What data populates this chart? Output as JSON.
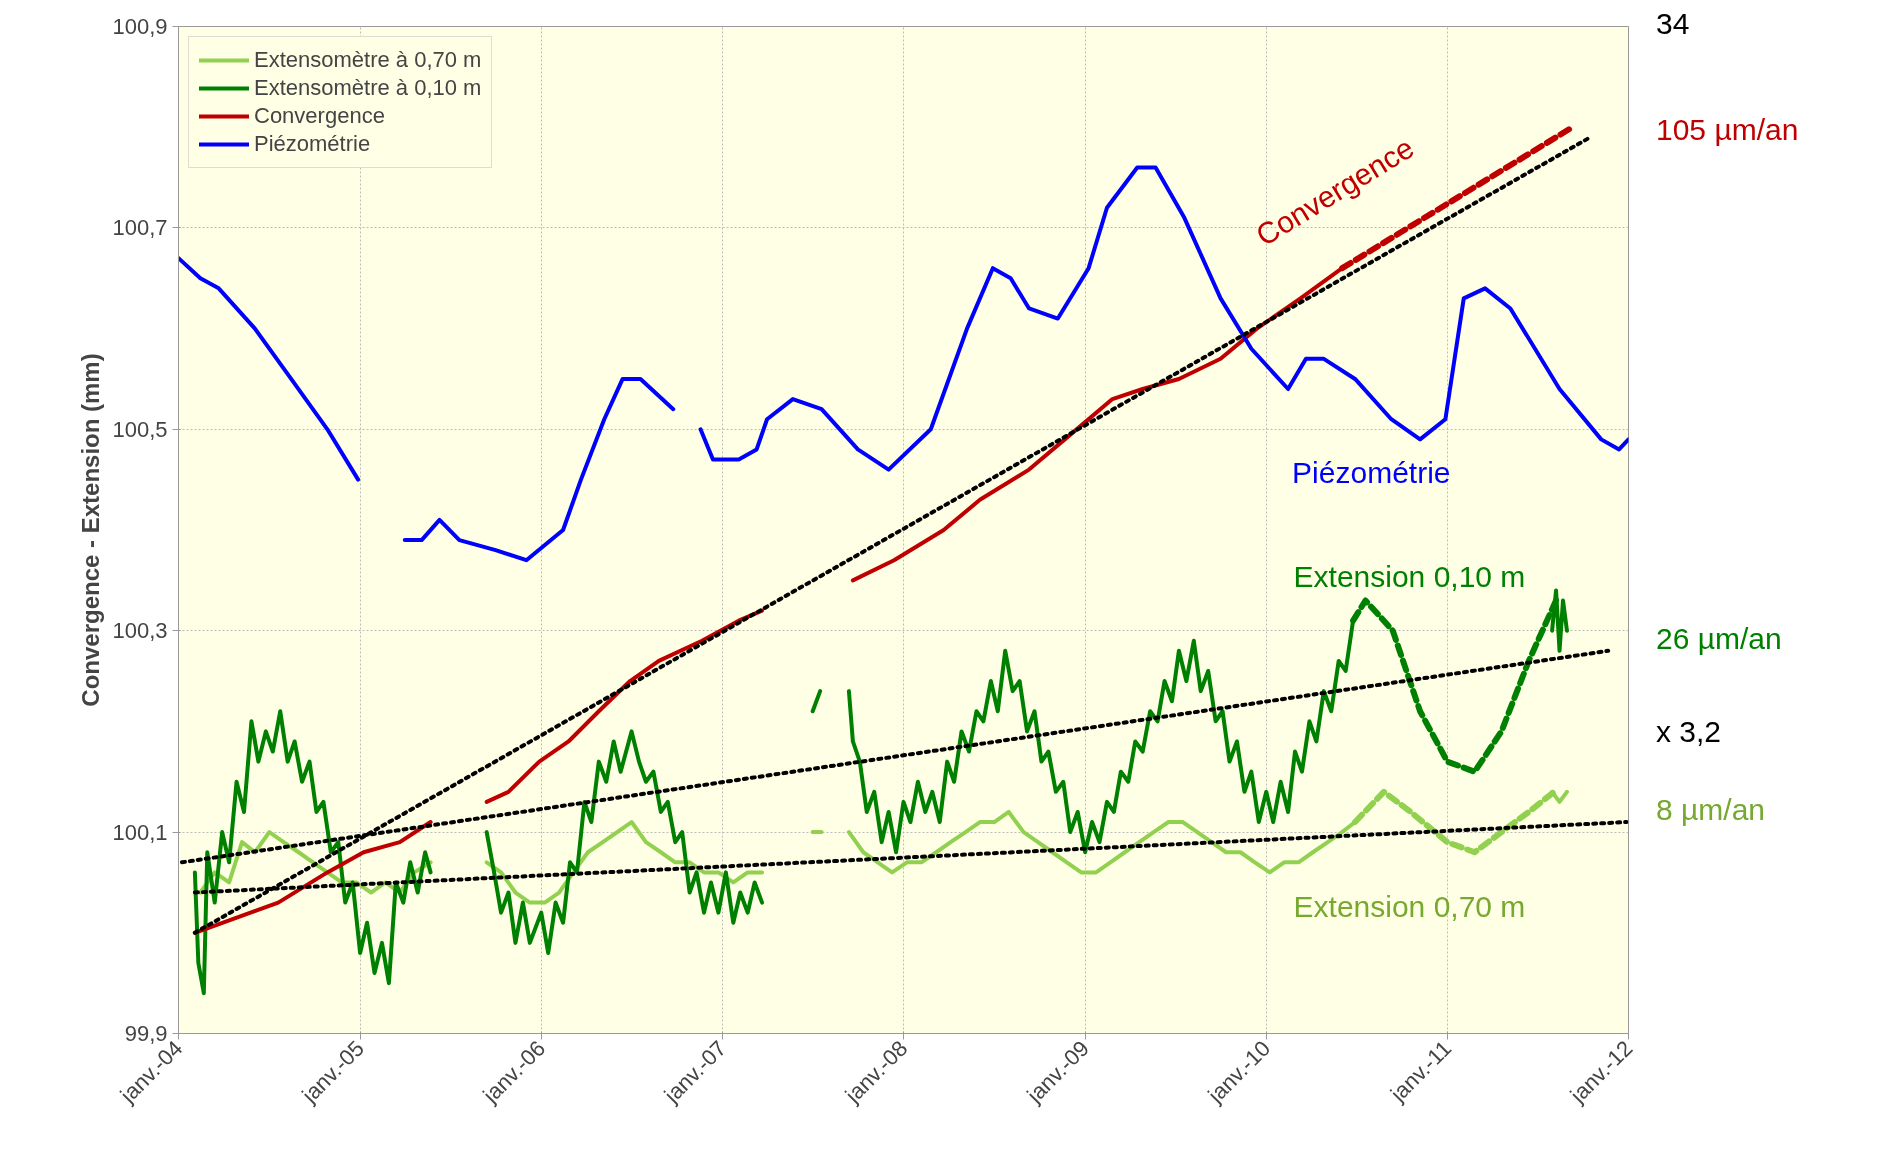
{
  "chart_data": {
    "type": "line",
    "ylabel": "Convergence - Extension (mm)",
    "xlim": [
      "2004-01-01",
      "2012-01-01"
    ],
    "ylim": [
      99.9,
      100.9
    ],
    "xticks": [
      {
        "value": "2004-01-01",
        "label": "janv.-04"
      },
      {
        "value": "2005-01-01",
        "label": "janv.-05"
      },
      {
        "value": "2006-01-01",
        "label": "janv.-06"
      },
      {
        "value": "2007-01-01",
        "label": "janv.-07"
      },
      {
        "value": "2008-01-01",
        "label": "janv.-08"
      },
      {
        "value": "2009-01-01",
        "label": "janv.-09"
      },
      {
        "value": "2010-01-01",
        "label": "janv.-10"
      },
      {
        "value": "2011-01-01",
        "label": "janv.-11"
      },
      {
        "value": "2012-01-01",
        "label": "janv.-12"
      }
    ],
    "yticks": [
      {
        "value": 99.9,
        "label": "99,9"
      },
      {
        "value": 100.1,
        "label": "100,1"
      },
      {
        "value": 100.3,
        "label": "100,3"
      },
      {
        "value": 100.5,
        "label": "100,5"
      },
      {
        "value": 100.7,
        "label": "100,7"
      },
      {
        "value": 100.9,
        "label": "100,9"
      }
    ],
    "grid": true,
    "legend": "top left",
    "series": [
      {
        "name": "Extensomètre à 0,70 m",
        "color": "#92d050",
        "line_style": "solid",
        "x": [
          "2004-02-14",
          "2004-03-14",
          "2004-04-12",
          "2004-05-08",
          "2004-06-03",
          "2004-07-02",
          "2004-07-31",
          "2004-08-30",
          "2004-09-28",
          "2004-10-27",
          "2004-11-25",
          "2004-12-24",
          "2005-01-23",
          "2005-02-21",
          "2005-03-22",
          "2005-04-20",
          "2005-05-23",
          "2005-07-02",
          "2005-09-13",
          "2005-10-12",
          "2005-11-10",
          "2005-12-09",
          "2006-01-08",
          "2006-02-06",
          "2006-03-07",
          "2006-04-05",
          "2006-05-05",
          "2006-06-03",
          "2006-07-02",
          "2006-07-31",
          "2006-08-30",
          "2006-09-28",
          "2006-10-27",
          "2006-11-25",
          "2006-12-24",
          "2007-01-23",
          "2007-02-21",
          "2007-03-22",
          "2007-05-27",
          "2007-07-02",
          "2007-07-20",
          "2007-08-15",
          "2007-09-13",
          "2007-10-12",
          "2007-11-10",
          "2007-12-09",
          "2008-01-08",
          "2008-02-06",
          "2008-03-07",
          "2008-04-05",
          "2008-05-05",
          "2008-06-03",
          "2008-07-02",
          "2008-07-31",
          "2008-08-30",
          "2008-09-28",
          "2008-10-27",
          "2008-11-25",
          "2008-12-24",
          "2009-01-23",
          "2009-02-21",
          "2009-03-22",
          "2009-04-20",
          "2009-05-19",
          "2009-06-18",
          "2009-07-17",
          "2009-08-15",
          "2009-09-13",
          "2009-10-12",
          "2009-11-10",
          "2009-12-09",
          "2010-01-08",
          "2010-02-06",
          "2010-03-07",
          "2010-04-05",
          "2010-05-05",
          "2010-06-03",
          "2010-06-29",
          "2011-01-01",
          "2011-07-31",
          "2011-08-15",
          "2011-08-30"
        ],
        "values": [
          100.04,
          100.06,
          100.05,
          100.09,
          100.08,
          100.1,
          100.09,
          100.08,
          100.07,
          100.06,
          100.05,
          100.05,
          100.04,
          100.05,
          100.04,
          100.06,
          100.07,
          null,
          100.07,
          100.06,
          100.04,
          100.03,
          100.03,
          100.04,
          100.06,
          100.08,
          100.09,
          100.1,
          100.11,
          100.09,
          100.08,
          100.07,
          100.07,
          100.06,
          100.06,
          100.05,
          100.06,
          100.06,
          null,
          100.1,
          100.1,
          null,
          100.1,
          100.08,
          100.07,
          100.06,
          100.07,
          100.07,
          100.08,
          100.09,
          100.1,
          100.11,
          100.11,
          100.12,
          100.1,
          100.09,
          100.08,
          100.07,
          100.06,
          100.06,
          100.07,
          100.08,
          100.09,
          100.1,
          100.11,
          100.11,
          100.1,
          100.09,
          100.08,
          100.08,
          100.07,
          100.06,
          100.07,
          100.07,
          100.08,
          100.09,
          100.1,
          100.11,
          null,
          100.14,
          100.13,
          100.14
        ]
      },
      {
        "name": "Extensomètre à 0,10 m",
        "color": "#008000",
        "line_style": "solid",
        "x": [
          "2004-02-03",
          "2004-02-10",
          "2004-02-21",
          "2004-02-28",
          "2004-03-14",
          "2004-03-29",
          "2004-04-12",
          "2004-04-27",
          "2004-05-12",
          "2004-05-27",
          "2004-06-10",
          "2004-06-25",
          "2004-07-09",
          "2004-07-24",
          "2004-08-08",
          "2004-08-22",
          "2004-09-06",
          "2004-09-21",
          "2004-10-05",
          "2004-10-19",
          "2004-11-03",
          "2004-11-18",
          "2004-12-02",
          "2004-12-17",
          "2005-01-01",
          "2005-01-15",
          "2005-01-30",
          "2005-02-14",
          "2005-02-28",
          "2005-03-14",
          "2005-03-29",
          "2005-04-12",
          "2005-04-27",
          "2005-05-12",
          "2005-05-23",
          "2005-07-02",
          "2005-09-13",
          "2005-09-28",
          "2005-10-12",
          "2005-10-27",
          "2005-11-10",
          "2005-11-25",
          "2005-12-09",
          "2006-01-01",
          "2006-01-15",
          "2006-01-30",
          "2006-02-14",
          "2006-02-28",
          "2006-03-14",
          "2006-03-29",
          "2006-04-12",
          "2006-04-27",
          "2006-05-12",
          "2006-05-27",
          "2006-06-10",
          "2006-07-02",
          "2006-07-17",
          "2006-07-31",
          "2006-08-15",
          "2006-08-30",
          "2006-09-13",
          "2006-09-28",
          "2006-10-12",
          "2006-10-27",
          "2006-11-10",
          "2006-11-25",
          "2006-12-09",
          "2006-12-24",
          "2007-01-08",
          "2007-01-23",
          "2007-02-06",
          "2007-02-21",
          "2007-03-07",
          "2007-03-22",
          "2007-05-27",
          "2007-07-02",
          "2007-07-17",
          "2007-08-15",
          "2007-09-13",
          "2007-09-21",
          "2007-10-05",
          "2007-10-19",
          "2007-11-03",
          "2007-11-18",
          "2007-12-02",
          "2007-12-17",
          "2008-01-01",
          "2008-01-15",
          "2008-01-30",
          "2008-02-14",
          "2008-02-28",
          "2008-03-14",
          "2008-03-29",
          "2008-04-12",
          "2008-04-27",
          "2008-05-12",
          "2008-05-27",
          "2008-06-10",
          "2008-06-25",
          "2008-07-09",
          "2008-07-24",
          "2008-08-08",
          "2008-08-22",
          "2008-09-06",
          "2008-09-21",
          "2008-10-05",
          "2008-10-19",
          "2008-11-03",
          "2008-11-18",
          "2008-12-02",
          "2008-12-17",
          "2009-01-01",
          "2009-01-15",
          "2009-01-30",
          "2009-02-14",
          "2009-02-28",
          "2009-03-14",
          "2009-03-29",
          "2009-04-12",
          "2009-04-27",
          "2009-05-12",
          "2009-05-27",
          "2009-06-10",
          "2009-06-25",
          "2009-07-09",
          "2009-07-24",
          "2009-08-08",
          "2009-08-22",
          "2009-09-06",
          "2009-09-21",
          "2009-10-05",
          "2009-10-19",
          "2009-11-03",
          "2009-11-18",
          "2009-12-02",
          "2009-12-17",
          "2010-01-01",
          "2010-01-15",
          "2010-01-30",
          "2010-02-14",
          "2010-02-28",
          "2010-03-14",
          "2010-03-29",
          "2010-04-12",
          "2010-04-27",
          "2010-05-12",
          "2010-05-27",
          "2010-06-10",
          "2010-06-25",
          "2011-01-01",
          "2011-07-31",
          "2011-08-08",
          "2011-08-15",
          "2011-08-22",
          "2011-08-30"
        ],
        "values": [
          100.06,
          99.97,
          99.94,
          100.08,
          100.03,
          100.1,
          100.07,
          100.15,
          100.12,
          100.21,
          100.17,
          100.2,
          100.18,
          100.22,
          100.17,
          100.19,
          100.15,
          100.17,
          100.12,
          100.13,
          100.08,
          100.09,
          100.03,
          100.05,
          99.98,
          100.01,
          99.96,
          99.99,
          99.95,
          100.05,
          100.03,
          100.07,
          100.04,
          100.08,
          100.06,
          null,
          100.1,
          100.06,
          100.02,
          100.04,
          99.99,
          100.03,
          99.99,
          100.02,
          99.98,
          100.03,
          100.01,
          100.07,
          100.06,
          100.13,
          100.11,
          100.17,
          100.15,
          100.19,
          100.16,
          100.2,
          100.17,
          100.15,
          100.16,
          100.12,
          100.13,
          100.09,
          100.1,
          100.04,
          100.06,
          100.02,
          100.05,
          100.02,
          100.06,
          100.01,
          100.04,
          100.02,
          100.05,
          100.03,
          null,
          100.22,
          100.24,
          null,
          100.24,
          100.19,
          100.17,
          100.12,
          100.14,
          100.09,
          100.12,
          100.08,
          100.13,
          100.11,
          100.15,
          100.12,
          100.14,
          100.11,
          100.17,
          100.15,
          100.2,
          100.18,
          100.22,
          100.21,
          100.25,
          100.22,
          100.28,
          100.24,
          100.25,
          100.2,
          100.22,
          100.17,
          100.18,
          100.14,
          100.15,
          100.1,
          100.12,
          100.08,
          100.11,
          100.09,
          100.13,
          100.12,
          100.16,
          100.15,
          100.19,
          100.18,
          100.22,
          100.21,
          100.25,
          100.23,
          100.28,
          100.25,
          100.29,
          100.24,
          100.26,
          100.21,
          100.22,
          100.17,
          100.19,
          100.14,
          100.16,
          100.11,
          100.14,
          100.11,
          100.15,
          100.12,
          100.18,
          100.16,
          100.21,
          100.19,
          100.24,
          100.22,
          100.27,
          100.26,
          100.31,
          null,
          100.3,
          100.34,
          100.28,
          100.33,
          100.3
        ]
      },
      {
        "name": "Convergence",
        "color": "#c00000",
        "line_style": "solid",
        "x": [
          "2004-02-03",
          "2004-07-20",
          "2004-10-27",
          "2005-01-08",
          "2005-03-22",
          "2005-05-23",
          "2005-07-02",
          "2005-09-13",
          "2005-10-27",
          "2005-12-28",
          "2006-02-25",
          "2006-04-27",
          "2006-06-29",
          "2006-08-26",
          "2006-11-21",
          "2007-02-03",
          "2007-03-22",
          "2007-05-27",
          "2007-09-21",
          "2007-12-13",
          "2008-03-22",
          "2008-06-03",
          "2008-09-10",
          "2008-11-21",
          "2009-02-25",
          "2009-04-27",
          "2009-07-09",
          "2009-10-01",
          "2009-12-13",
          "2010-03-11",
          "2010-06-03"
        ],
        "values": [
          100.0,
          100.03,
          100.06,
          100.08,
          100.09,
          100.11,
          null,
          100.13,
          100.14,
          100.17,
          100.19,
          100.22,
          100.25,
          100.27,
          100.29,
          100.31,
          100.32,
          null,
          100.35,
          100.37,
          100.4,
          100.43,
          100.46,
          100.49,
          100.53,
          100.54,
          100.55,
          100.57,
          100.6,
          100.63,
          100.66
        ]
      },
      {
        "name": "Piézométrie",
        "color": "#0000ff",
        "line_style": "solid",
        "x": [
          "2004-01-01",
          "2004-02-14",
          "2004-03-22",
          "2004-06-03",
          "2004-08-15",
          "2004-10-27",
          "2004-12-28",
          "2005-02-06",
          "2005-04-01",
          "2005-05-05",
          "2005-06-10",
          "2005-07-20",
          "2005-10-01",
          "2005-12-02",
          "2006-02-14",
          "2006-03-22",
          "2006-05-08",
          "2006-06-14",
          "2006-07-20",
          "2006-09-24",
          "2006-10-19",
          "2006-11-18",
          "2006-12-13",
          "2007-02-03",
          "2007-03-11",
          "2007-04-01",
          "2007-05-23",
          "2007-07-20",
          "2007-10-01",
          "2007-12-02",
          "2008-02-25",
          "2008-05-08",
          "2008-06-29",
          "2008-08-04",
          "2008-09-10",
          "2008-11-07",
          "2009-01-08",
          "2009-02-14",
          "2009-04-16",
          "2009-05-23",
          "2009-07-20",
          "2009-10-01",
          "2009-12-02",
          "2010-02-14",
          "2010-03-22",
          "2010-04-27",
          "2010-06-29",
          "2010-09-10",
          "2010-11-07",
          "2010-12-28",
          "2011-02-03",
          "2011-03-18",
          "2011-05-08",
          "2011-08-15",
          "2011-11-07",
          "2011-12-13",
          "2012-01-01"
        ],
        "values": [
          100.67,
          100.65,
          100.64,
          100.6,
          100.55,
          100.5,
          100.45,
          null,
          100.39,
          100.39,
          100.41,
          100.39,
          100.38,
          100.37,
          100.4,
          100.45,
          100.51,
          100.55,
          100.55,
          100.52,
          null,
          100.5,
          100.47,
          100.47,
          100.48,
          100.51,
          100.53,
          100.52,
          100.48,
          100.46,
          100.5,
          100.6,
          100.66,
          100.65,
          100.62,
          100.61,
          100.66,
          100.72,
          100.76,
          100.76,
          100.71,
          100.63,
          100.58,
          100.54,
          100.57,
          100.57,
          100.55,
          100.51,
          100.49,
          100.51,
          100.63,
          100.64,
          100.62,
          100.54,
          100.49,
          100.48,
          100.49
        ]
      },
      {
        "color": "#c00000",
        "line_style": "dashed",
        "x": [
          "2010-06-03",
          "2011-09-10"
        ],
        "values": [
          100.66,
          100.8
        ]
      },
      {
        "color": "#008000",
        "line_style": "dashed",
        "x": [
          "2010-06-25",
          "2010-07-20",
          "2010-09-13",
          "2010-11-07",
          "2011-01-01",
          "2011-02-25",
          "2011-04-20",
          "2011-06-14",
          "2011-08-08"
        ],
        "values": [
          100.31,
          100.33,
          100.3,
          100.22,
          100.17,
          100.16,
          100.2,
          100.27,
          100.33
        ]
      },
      {
        "color": "#92d050",
        "line_style": "dashed",
        "x": [
          "2010-06-29",
          "2010-08-26",
          "2010-10-19",
          "2011-01-01",
          "2011-02-25",
          "2011-04-20",
          "2011-06-14",
          "2011-08-04"
        ],
        "values": [
          100.11,
          100.14,
          100.12,
          100.09,
          100.08,
          100.1,
          100.12,
          100.14
        ]
      },
      {
        "color": "#000000",
        "line_style": "dotted",
        "x": [
          "2004-02-03",
          "2011-10-16"
        ],
        "values": [
          100.0,
          100.79
        ]
      },
      {
        "color": "#000000",
        "line_style": "dotted",
        "x": [
          "2004-01-08",
          "2011-11-21"
        ],
        "values": [
          100.07,
          100.28
        ]
      },
      {
        "color": "#000000",
        "line_style": "dotted",
        "x": [
          "2004-02-03",
          "2011-12-28"
        ],
        "values": [
          100.04,
          100.11
        ]
      }
    ],
    "annotations": [
      "Convergence",
      "Piézométrie",
      "Extension 0,10 m",
      "Extension 0,70 m",
      "105 µm/an",
      "26 µm/an",
      "x 3,2",
      "8 µm/an",
      "34"
    ]
  }
}
